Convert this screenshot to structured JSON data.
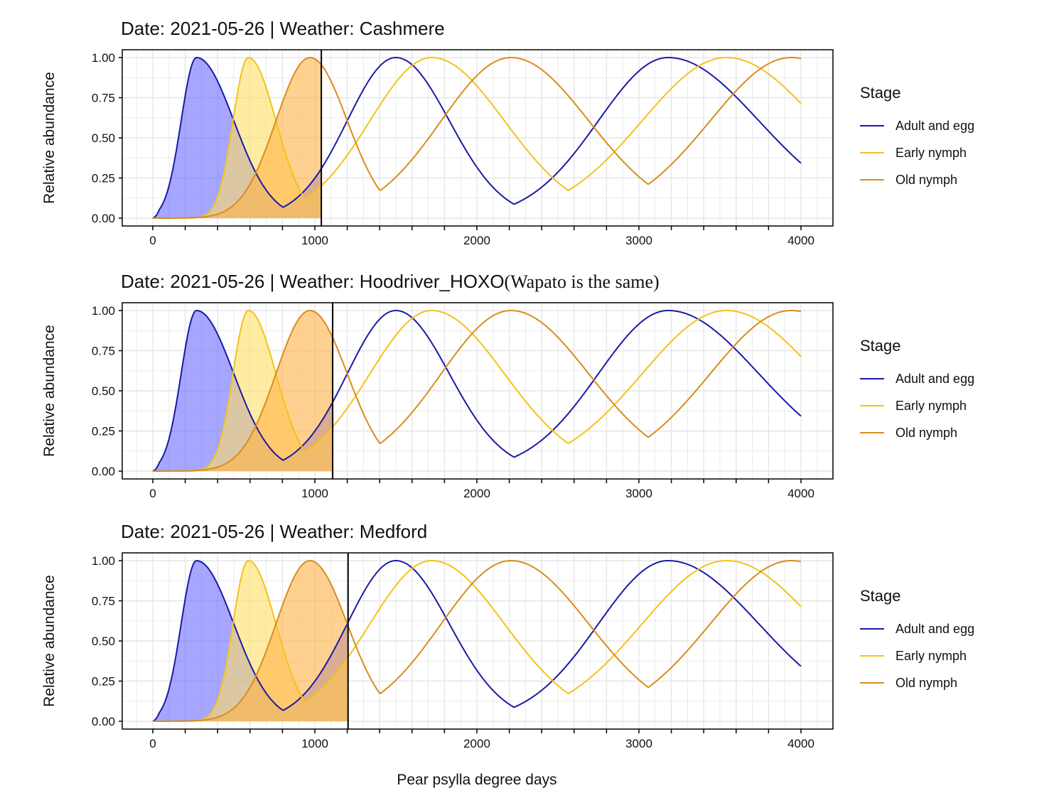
{
  "colors": {
    "adult": "#1a1aa6",
    "early": "#f2c31b",
    "old": "#d98c1c",
    "adult_fill": "#6b6bff",
    "early_fill": "#ffe066",
    "old_fill": "#ffb347",
    "grid": "#e6e6e6"
  },
  "legend": {
    "title": "Stage",
    "items": [
      {
        "label": "Adult and egg",
        "color": "#1a1aa6"
      },
      {
        "label": "Early nymph",
        "color": "#f2c31b"
      },
      {
        "label": "Old nymph",
        "color": "#d98c1c"
      }
    ]
  },
  "xlabel": "Pear psylla degree days",
  "chart_data": [
    {
      "type": "line",
      "title": "Date: 2021-05-26 | Weather: Cashmere",
      "note": "",
      "xlabel": "Pear psylla degree days",
      "ylabel": "Relative abundance",
      "xlim": [
        0,
        4000
      ],
      "ylim": [
        0,
        1
      ],
      "xticks": [
        0,
        1000,
        2000,
        3000,
        4000
      ],
      "yticks": [
        "0.00",
        "0.25",
        "0.50",
        "0.75",
        "1.00"
      ],
      "current_degree_days": 1040,
      "series": [
        {
          "name": "Adult and egg",
          "stage": "adult",
          "peaks_x": [
            270,
            1500,
            3180
          ],
          "left_width": [
            95,
            300,
            430
          ],
          "right_width": [
            230,
            330,
            560
          ]
        },
        {
          "name": "Early nymph",
          "stage": "early",
          "peaks_x": [
            590,
            1720,
            3540
          ],
          "left_width": [
            95,
            380,
            520
          ],
          "right_width": [
            170,
            450,
            560
          ]
        },
        {
          "name": "Old nymph",
          "stage": "old",
          "peaks_x": [
            970,
            2210,
            3940
          ],
          "left_width": [
            210,
            430,
            500
          ],
          "right_width": [
            230,
            480,
            560
          ]
        }
      ]
    },
    {
      "type": "line",
      "title": "Date: 2021-05-26 | Weather: Hoodriver_HOXO",
      "note": "(Wapato is the same)",
      "xlabel": "Pear psylla degree days",
      "ylabel": "Relative abundance",
      "xlim": [
        0,
        4000
      ],
      "ylim": [
        0,
        1
      ],
      "xticks": [
        0,
        1000,
        2000,
        3000,
        4000
      ],
      "yticks": [
        "0.00",
        "0.25",
        "0.50",
        "0.75",
        "1.00"
      ],
      "current_degree_days": 1110,
      "series": [
        {
          "name": "Adult and egg",
          "stage": "adult",
          "peaks_x": [
            270,
            1500,
            3180
          ],
          "left_width": [
            95,
            300,
            430
          ],
          "right_width": [
            230,
            330,
            560
          ]
        },
        {
          "name": "Early nymph",
          "stage": "early",
          "peaks_x": [
            590,
            1720,
            3540
          ],
          "left_width": [
            95,
            380,
            520
          ],
          "right_width": [
            170,
            450,
            560
          ]
        },
        {
          "name": "Old nymph",
          "stage": "old",
          "peaks_x": [
            970,
            2210,
            3940
          ],
          "left_width": [
            210,
            430,
            500
          ],
          "right_width": [
            230,
            480,
            560
          ]
        }
      ]
    },
    {
      "type": "line",
      "title": "Date: 2021-05-26 | Weather: Medford",
      "note": "",
      "xlabel": "Pear psylla degree days",
      "ylabel": "Relative abundance",
      "xlim": [
        0,
        4000
      ],
      "ylim": [
        0,
        1
      ],
      "xticks": [
        0,
        1000,
        2000,
        3000,
        4000
      ],
      "yticks": [
        "0.00",
        "0.25",
        "0.50",
        "0.75",
        "1.00"
      ],
      "current_degree_days": 1205,
      "series": [
        {
          "name": "Adult and egg",
          "stage": "adult",
          "peaks_x": [
            270,
            1500,
            3180
          ],
          "left_width": [
            95,
            300,
            430
          ],
          "right_width": [
            230,
            330,
            560
          ]
        },
        {
          "name": "Early nymph",
          "stage": "early",
          "peaks_x": [
            590,
            1720,
            3540
          ],
          "left_width": [
            95,
            380,
            520
          ],
          "right_width": [
            170,
            450,
            560
          ]
        },
        {
          "name": "Old nymph",
          "stage": "old",
          "peaks_x": [
            970,
            2210,
            3940
          ],
          "left_width": [
            210,
            430,
            500
          ],
          "right_width": [
            230,
            480,
            560
          ]
        }
      ]
    }
  ]
}
